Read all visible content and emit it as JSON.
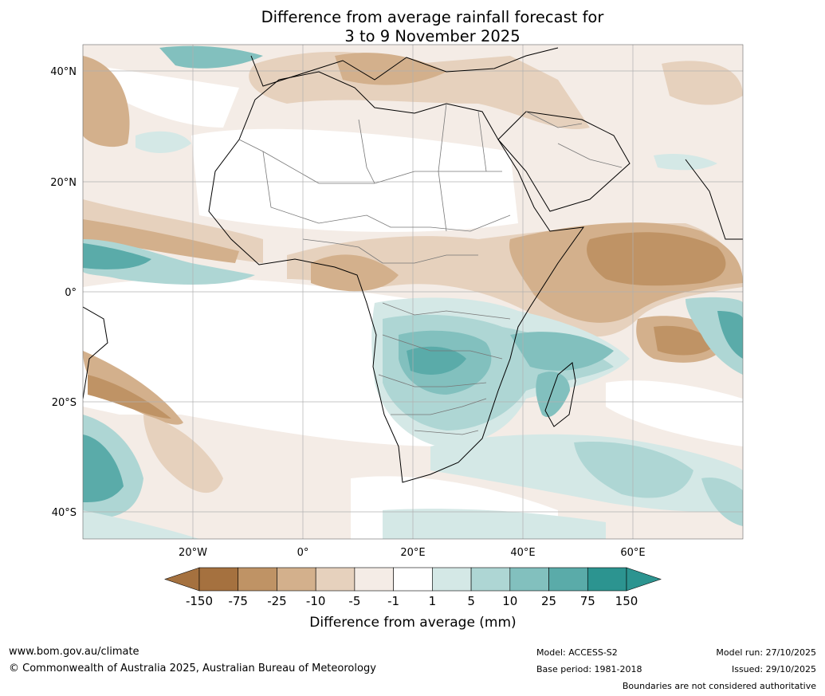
{
  "title_line1": "Difference from average rainfall forecast for",
  "title_line2": "3 to 9 November 2025",
  "lat_labels": [
    "40°N",
    "20°N",
    "0°",
    "20°S",
    "40°S"
  ],
  "lon_labels": [
    "20°W",
    "0°",
    "20°E",
    "40°E",
    "60°E"
  ],
  "legend": {
    "ticks": [
      "-150",
      "-75",
      "-25",
      "-10",
      "-5",
      "-1",
      "1",
      "5",
      "10",
      "25",
      "75",
      "150"
    ],
    "colors": [
      "#a5713f",
      "#bf9365",
      "#d3b08c",
      "#e6d1bd",
      "#f4ece6",
      "#ffffff",
      "#d4e8e6",
      "#aed6d4",
      "#82c0be",
      "#5aaba9",
      "#2c9490"
    ],
    "under_color": "#a5713f",
    "over_color": "#2c9490",
    "label": "Difference from average (mm)"
  },
  "footer": {
    "url": "www.bom.gov.au/climate",
    "copyright": "© Commonwealth of Australia 2025, Australian Bureau of Meteorology",
    "model": "Model: ACCESS-S2",
    "base_period": "Base period: 1981-2018",
    "model_run": "Model run: 27/10/2025",
    "issued": "Issued: 29/10/2025",
    "disclaimer": "Boundaries are not considered authoritative"
  }
}
